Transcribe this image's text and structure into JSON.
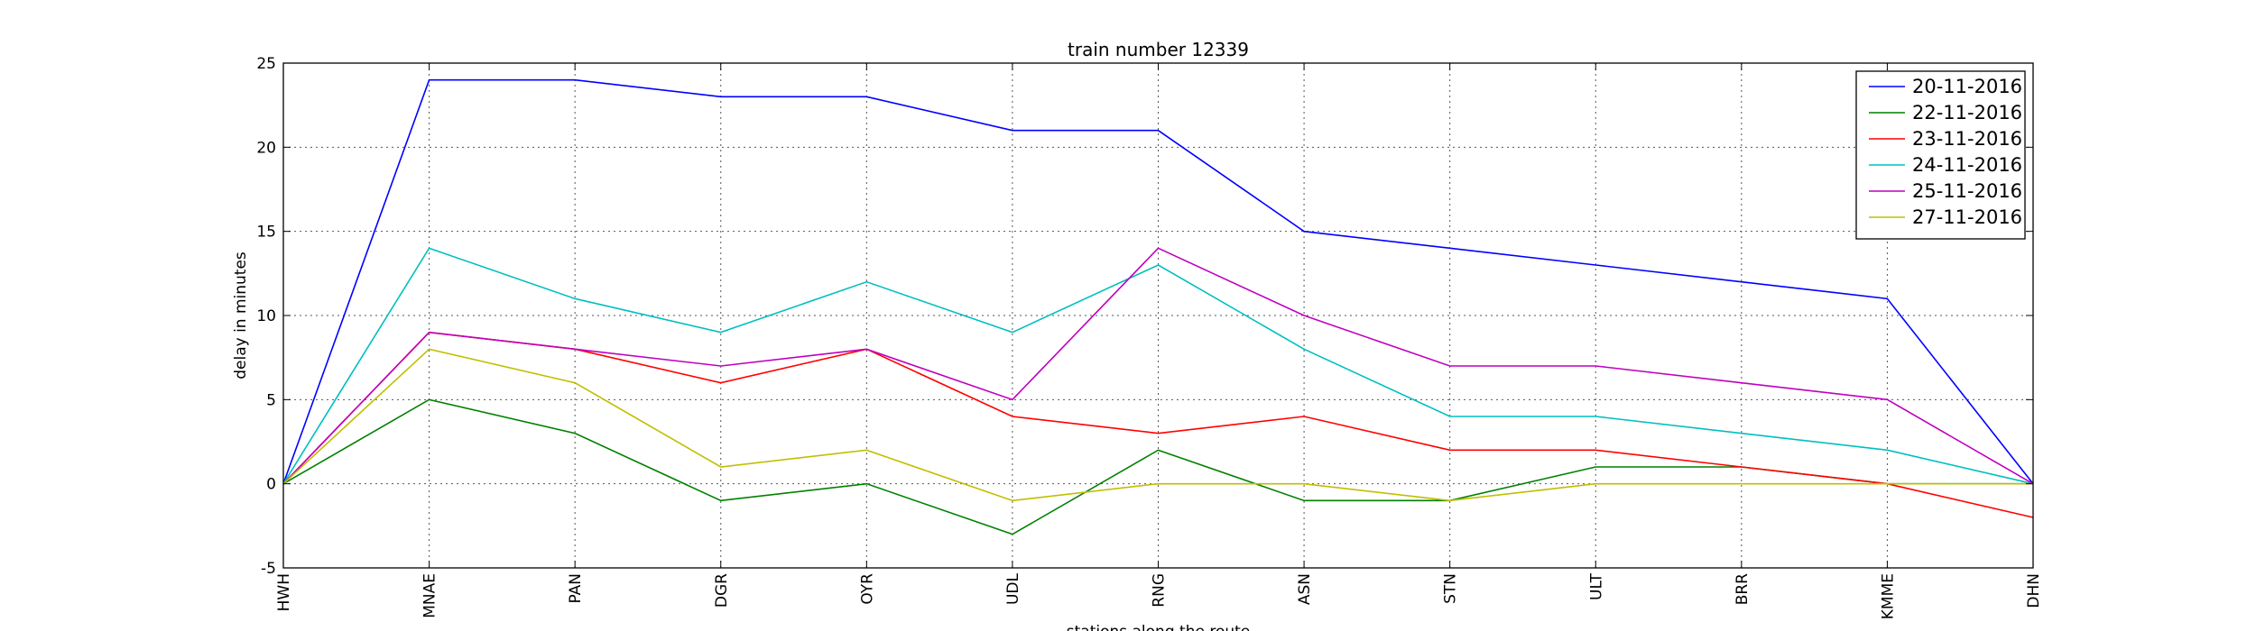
{
  "chart_data": {
    "type": "line",
    "title": "train number 12339",
    "xlabel": "stations along the route",
    "ylabel": "delay in minutes",
    "categories": [
      "HWH",
      "MNAE",
      "PAN",
      "DGR",
      "OYR",
      "UDL",
      "RNG",
      "ASN",
      "STN",
      "ULT",
      "BRR",
      "KMME",
      "DHN"
    ],
    "ylim": [
      -5,
      25
    ],
    "yticks": [
      -5,
      0,
      5,
      10,
      15,
      20,
      25
    ],
    "grid": true,
    "legend_position": "top-right",
    "series": [
      {
        "name": "20-11-2016",
        "color": "#0000ff",
        "values": [
          0,
          24,
          24,
          23,
          23,
          21,
          21,
          15,
          14,
          13,
          12,
          11,
          0
        ]
      },
      {
        "name": "22-11-2016",
        "color": "#008000",
        "values": [
          0,
          5,
          3,
          -1,
          0,
          -3,
          2,
          -1,
          -1,
          1,
          1,
          0,
          0
        ]
      },
      {
        "name": "23-11-2016",
        "color": "#ff0000",
        "values": [
          0,
          9,
          8,
          6,
          8,
          4,
          3,
          4,
          2,
          2,
          1,
          0,
          -2
        ]
      },
      {
        "name": "24-11-2016",
        "color": "#00bfbf",
        "values": [
          0,
          14,
          11,
          9,
          12,
          9,
          13,
          8,
          4,
          4,
          3,
          2,
          0
        ]
      },
      {
        "name": "25-11-2016",
        "color": "#bf00bf",
        "values": [
          0,
          9,
          8,
          7,
          8,
          5,
          14,
          10,
          7,
          7,
          6,
          5,
          0
        ]
      },
      {
        "name": "27-11-2016",
        "color": "#bfbf00",
        "values": [
          0,
          8,
          6,
          1,
          2,
          -1,
          0,
          0,
          -1,
          0,
          0,
          0,
          0
        ]
      }
    ]
  }
}
